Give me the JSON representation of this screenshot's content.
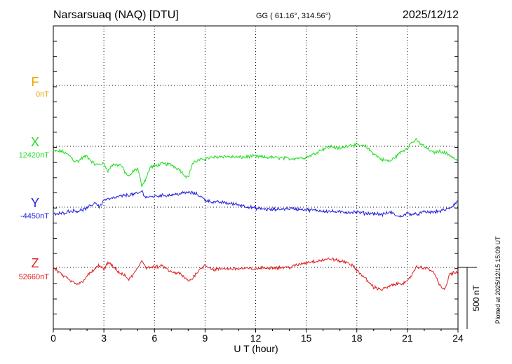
{
  "header": {
    "station": "Narsarsuaq (NAQ)  [DTU]",
    "coords": "GG ( 61.16°, 314.56°)",
    "date": "2025/12/12"
  },
  "footer_note": "Plotted at 2025/12/15 15:09 UT",
  "chart_data": {
    "type": "line",
    "xlabel": "U T (hour)",
    "xlim": [
      0,
      24
    ],
    "x_ticks": [
      "0",
      "3",
      "6",
      "9",
      "12",
      "15",
      "18",
      "21",
      "24"
    ],
    "scale_bar": {
      "label": "500 nT",
      "value_nT": 500
    },
    "grid": true,
    "series": [
      {
        "name": "F",
        "baseline": "0nT",
        "color": "#e8a800",
        "x": [],
        "values": []
      },
      {
        "name": "X",
        "baseline": "12420nT",
        "color": "#22dd22",
        "x": [
          0,
          0.5,
          1.0,
          1.25,
          1.5,
          1.75,
          2.0,
          2.25,
          2.5,
          3.0,
          3.25,
          3.5,
          4.0,
          4.25,
          4.5,
          4.75,
          5.0,
          5.25,
          5.5,
          5.75,
          6.0,
          6.5,
          7.0,
          7.5,
          7.75,
          8.0,
          8.25,
          8.5,
          9.0,
          9.5,
          10.0,
          11.0,
          12.0,
          12.5,
          13.0,
          14.0,
          15.0,
          15.5,
          16.0,
          16.5,
          17.0,
          17.5,
          18.0,
          18.5,
          19.0,
          19.5,
          20.0,
          20.5,
          21.0,
          21.25,
          21.5,
          22.0,
          22.5,
          23.0,
          23.5,
          24.0
        ],
        "values": [
          -40,
          -40,
          -80,
          -120,
          -120,
          -90,
          -80,
          -120,
          -150,
          -140,
          -200,
          -150,
          -150,
          -210,
          -250,
          -200,
          -180,
          -320,
          -260,
          -170,
          -160,
          -140,
          -150,
          -190,
          -230,
          -250,
          -140,
          -120,
          -100,
          -90,
          -80,
          -90,
          -80,
          -90,
          -90,
          -100,
          -90,
          -60,
          -20,
          0,
          -20,
          10,
          10,
          0,
          -60,
          -110,
          -120,
          -60,
          -10,
          30,
          50,
          0,
          -50,
          -40,
          -70,
          -120
        ]
      },
      {
        "name": "Y",
        "baseline": "-4450nT",
        "color": "#2222dd",
        "x": [
          0,
          0.5,
          1.0,
          1.5,
          2.0,
          2.5,
          2.75,
          3.0,
          3.5,
          4.0,
          4.5,
          5.0,
          5.25,
          5.5,
          6.0,
          7.0,
          8.0,
          8.5,
          9.0,
          9.5,
          10.0,
          11.0,
          12.0,
          13.0,
          14.0,
          15.0,
          16.0,
          17.0,
          18.0,
          18.5,
          19.0,
          19.5,
          20.0,
          20.5,
          21.0,
          21.5,
          22.0,
          22.5,
          23.0,
          23.5,
          24.0
        ],
        "values": [
          -60,
          -50,
          -30,
          -30,
          -10,
          40,
          0,
          60,
          70,
          90,
          100,
          110,
          130,
          80,
          90,
          100,
          120,
          110,
          60,
          40,
          40,
          20,
          -10,
          -20,
          -10,
          -20,
          -30,
          -40,
          -40,
          -50,
          -50,
          -60,
          -40,
          -80,
          -50,
          -60,
          -40,
          -40,
          -30,
          -10,
          50
        ]
      },
      {
        "name": "Z",
        "baseline": "52660nT",
        "color": "#dd2222",
        "x": [
          0,
          0.5,
          1.0,
          1.5,
          1.75,
          2.0,
          2.5,
          2.75,
          3.0,
          3.25,
          3.5,
          4.0,
          4.25,
          4.5,
          5.0,
          5.25,
          5.5,
          6.0,
          6.5,
          7.0,
          7.5,
          8.0,
          8.25,
          8.5,
          9.0,
          9.5,
          10.0,
          11.0,
          12.0,
          13.0,
          14.0,
          15.0,
          15.5,
          16.0,
          16.5,
          17.0,
          17.5,
          18.0,
          18.5,
          19.0,
          19.5,
          20.0,
          20.5,
          21.0,
          21.25,
          21.5,
          22.0,
          22.5,
          23.0,
          23.25,
          23.5,
          24.0
        ],
        "values": [
          0,
          -60,
          -110,
          -140,
          -110,
          -70,
          -10,
          20,
          -20,
          40,
          10,
          -50,
          -70,
          -100,
          -10,
          60,
          0,
          0,
          10,
          -40,
          -50,
          -110,
          -90,
          -40,
          20,
          -20,
          -10,
          -10,
          -10,
          0,
          0,
          40,
          50,
          60,
          70,
          50,
          40,
          -20,
          -90,
          -160,
          -180,
          -150,
          -130,
          -120,
          -60,
          0,
          0,
          -30,
          -160,
          -180,
          -50,
          -40
        ]
      }
    ]
  }
}
